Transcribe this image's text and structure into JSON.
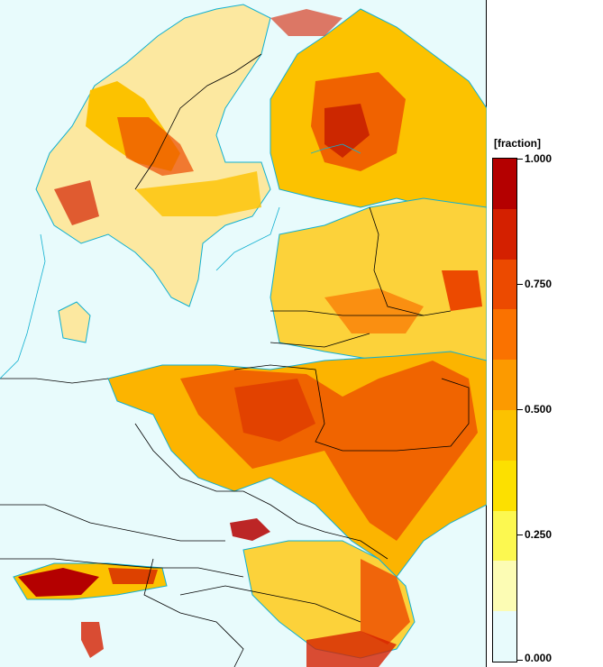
{
  "legend": {
    "units": "[fraction]",
    "ticks": [
      "1.000",
      "0.750",
      "0.500",
      "0.250",
      "0.000"
    ],
    "colors_top_to_bottom": [
      "#b40000",
      "#d42000",
      "#ec4a00",
      "#fa7200",
      "#fc9a00",
      "#fcc200",
      "#fce000",
      "#fcf850",
      "#fcfcb4",
      "#e8fbfc"
    ]
  },
  "map": {
    "ocean_color": "#e8fbfc",
    "coastline_color": "#10b0d0",
    "border_color": "#000000"
  }
}
